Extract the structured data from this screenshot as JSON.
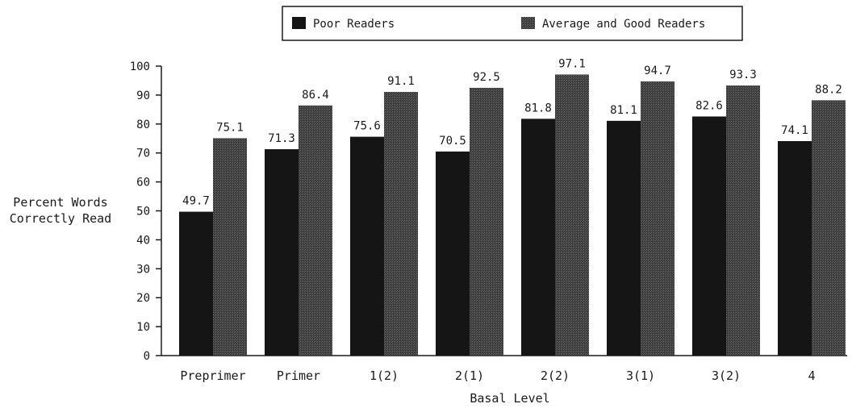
{
  "chart_data": {
    "type": "bar",
    "categories": [
      "Preprimer",
      "Primer",
      "1(2)",
      "2(1)",
      "2(2)",
      "3(1)",
      "3(2)",
      "4"
    ],
    "series": [
      {
        "name": "Poor Readers",
        "values": [
          49.7,
          71.3,
          75.6,
          70.5,
          81.8,
          81.1,
          82.6,
          74.1
        ],
        "color": "#151515"
      },
      {
        "name": "Average and Good Readers",
        "values": [
          75.1,
          86.4,
          91.1,
          92.5,
          97.1,
          94.7,
          93.3,
          88.2
        ],
        "color": "#4a4a4a"
      }
    ],
    "value_labels": [
      [
        "49.7",
        "71.3",
        "75.6",
        "70.5",
        "81.8",
        "81.1",
        "82.6",
        "74.1"
      ],
      [
        "75.1",
        "86.4",
        "91.1",
        "92.5",
        "97.1",
        "94.7",
        "93.3",
        "88.2"
      ]
    ],
    "yticks": [
      "0",
      "10",
      "20",
      "30",
      "40",
      "50",
      "60",
      "70",
      "80",
      "90",
      "100"
    ],
    "xlabel": "Basal Level",
    "ylabel": [
      "Percent Words",
      "Correctly Read"
    ],
    "ylim": [
      0,
      100
    ],
    "legend_position": "top",
    "grid": false
  }
}
